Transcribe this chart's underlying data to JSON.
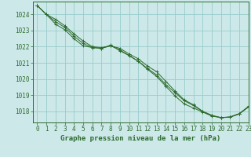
{
  "title": "Graphe pression niveau de la mer (hPa)",
  "bg_color": "#cce8e8",
  "grid_color": "#99cccc",
  "line_color": "#2d6b2d",
  "marker_color": "#2d6b2d",
  "xlim": [
    -0.5,
    23
  ],
  "ylim": [
    1017.3,
    1024.8
  ],
  "yticks": [
    1018,
    1019,
    1020,
    1021,
    1022,
    1023,
    1024
  ],
  "xticks": [
    0,
    1,
    2,
    3,
    4,
    5,
    6,
    7,
    8,
    9,
    10,
    11,
    12,
    13,
    14,
    15,
    16,
    17,
    18,
    19,
    20,
    21,
    22,
    23
  ],
  "series": [
    [
      1024.55,
      1024.0,
      1023.7,
      1023.3,
      1022.8,
      1022.35,
      1022.0,
      1021.95,
      1022.05,
      1021.9,
      1021.55,
      1021.25,
      1020.8,
      1020.45,
      1019.85,
      1019.25,
      1018.7,
      1018.4,
      1018.0,
      1017.75,
      1017.6,
      1017.65,
      1017.85,
      1018.25
    ],
    [
      1024.55,
      1024.0,
      1023.55,
      1023.2,
      1022.65,
      1022.2,
      1021.95,
      1021.9,
      1022.05,
      1021.8,
      1021.45,
      1021.1,
      1020.6,
      1020.15,
      1019.55,
      1018.95,
      1018.45,
      1018.2,
      1017.95,
      1017.7,
      1017.6,
      1017.63,
      1017.82,
      1018.28
    ],
    [
      1024.55,
      1024.0,
      1023.4,
      1023.05,
      1022.5,
      1022.05,
      1021.95,
      1021.9,
      1022.1,
      1021.75,
      1021.45,
      1021.1,
      1020.65,
      1020.25,
      1019.65,
      1019.15,
      1018.65,
      1018.35,
      1017.98,
      1017.72,
      1017.6,
      1017.63,
      1017.85,
      1018.3
    ]
  ],
  "xlabel_fontsize": 6.5,
  "tick_fontsize": 5.5
}
